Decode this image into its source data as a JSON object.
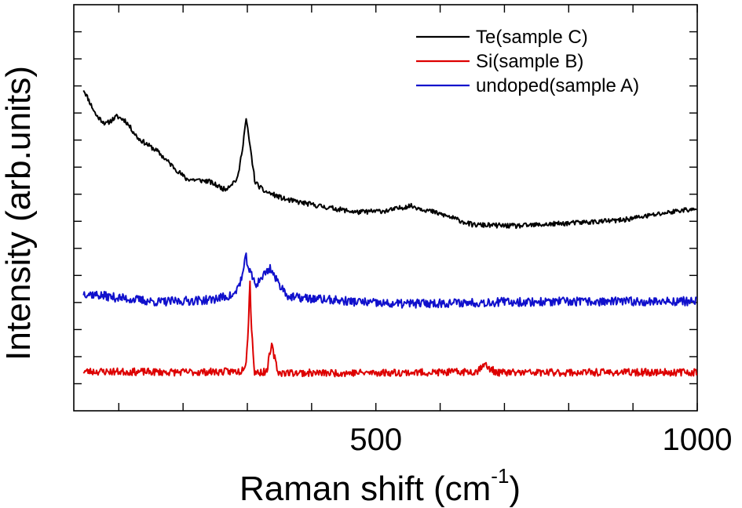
{
  "chart_data": {
    "type": "line",
    "xlabel": "Raman shift (cm",
    "xlabel_sup": "-1",
    "xlabel_tail": ")",
    "ylabel": "Intensity (arb.units)",
    "xlim": [
      30,
      1000
    ],
    "ylim": [
      0,
      1
    ],
    "x_ticks": [
      100,
      200,
      300,
      400,
      500,
      600,
      700,
      800,
      900,
      1000
    ],
    "x_tick_labels": [
      {
        "x": 500,
        "label": "500"
      },
      {
        "x": 1000,
        "label": "1000"
      }
    ],
    "y_minor_ticks": 15,
    "grid": false,
    "legend": "top-right",
    "series": [
      {
        "name": "Te(sample C)",
        "color": "#000000",
        "noise": 0.006,
        "seed": 11,
        "points": [
          [
            45,
            0.792
          ],
          [
            65,
            0.727
          ],
          [
            80,
            0.706
          ],
          [
            97,
            0.725
          ],
          [
            110,
            0.715
          ],
          [
            130,
            0.671
          ],
          [
            160,
            0.639
          ],
          [
            180,
            0.608
          ],
          [
            205,
            0.571
          ],
          [
            240,
            0.565
          ],
          [
            265,
            0.545
          ],
          [
            285,
            0.572
          ],
          [
            293,
            0.654
          ],
          [
            298,
            0.72
          ],
          [
            304,
            0.654
          ],
          [
            312,
            0.563
          ],
          [
            325,
            0.542
          ],
          [
            360,
            0.52
          ],
          [
            420,
            0.502
          ],
          [
            470,
            0.489
          ],
          [
            520,
            0.493
          ],
          [
            553,
            0.505
          ],
          [
            575,
            0.496
          ],
          [
            610,
            0.48
          ],
          [
            650,
            0.458
          ],
          [
            720,
            0.455
          ],
          [
            800,
            0.462
          ],
          [
            880,
            0.469
          ],
          [
            930,
            0.482
          ],
          [
            980,
            0.495
          ],
          [
            1000,
            0.494
          ]
        ]
      },
      {
        "name": "Si(sample B)",
        "color": "#dd0000",
        "noise": 0.009,
        "seed": 23,
        "points": [
          [
            45,
            0.097
          ],
          [
            200,
            0.095
          ],
          [
            290,
            0.097
          ],
          [
            298,
            0.12
          ],
          [
            302,
            0.22
          ],
          [
            304,
            0.332
          ],
          [
            306,
            0.22
          ],
          [
            311,
            0.094
          ],
          [
            330,
            0.096
          ],
          [
            335,
            0.14
          ],
          [
            338,
            0.16
          ],
          [
            341,
            0.14
          ],
          [
            348,
            0.094
          ],
          [
            420,
            0.093
          ],
          [
            620,
            0.095
          ],
          [
            658,
            0.097
          ],
          [
            665,
            0.112
          ],
          [
            669,
            0.118
          ],
          [
            673,
            0.106
          ],
          [
            690,
            0.094
          ],
          [
            1000,
            0.095
          ]
        ]
      },
      {
        "name": "undoped(sample A)",
        "color": "#1010cc",
        "noise": 0.011,
        "seed": 37,
        "points": [
          [
            45,
            0.29
          ],
          [
            90,
            0.28
          ],
          [
            160,
            0.268
          ],
          [
            240,
            0.273
          ],
          [
            280,
            0.285
          ],
          [
            292,
            0.33
          ],
          [
            298,
            0.38
          ],
          [
            303,
            0.345
          ],
          [
            313,
            0.31
          ],
          [
            328,
            0.34
          ],
          [
            336,
            0.352
          ],
          [
            345,
            0.322
          ],
          [
            365,
            0.28
          ],
          [
            420,
            0.274
          ],
          [
            520,
            0.263
          ],
          [
            700,
            0.268
          ],
          [
            850,
            0.269
          ],
          [
            1000,
            0.27
          ]
        ]
      }
    ]
  }
}
